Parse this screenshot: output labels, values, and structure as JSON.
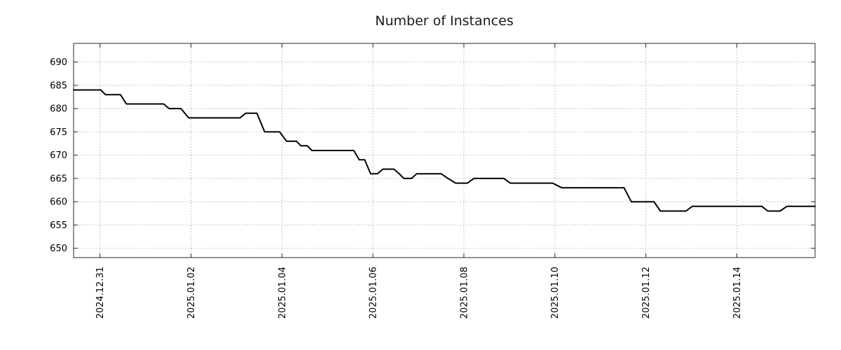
{
  "chart_data": {
    "type": "line",
    "title": "Number of Instances",
    "xlabel": "",
    "ylabel": "",
    "legend": false,
    "grid": true,
    "line_color": "#000000",
    "grid_color": "#999999",
    "axis_color": "#2a2a2a",
    "text_color": "#000000",
    "title_color": "#1a1a1a",
    "line_width": 2,
    "y_ticks": [
      650,
      655,
      660,
      665,
      670,
      675,
      680,
      685,
      690
    ],
    "x_tick_positions": [
      1,
      3,
      5,
      7,
      9,
      11,
      13,
      15
    ],
    "x_tick_labels": [
      "2024.12.31",
      "2025.01.02",
      "2025.01.04",
      "2025.01.06",
      "2025.01.08",
      "2025.01.10",
      "2025.01.12",
      "2025.01.14"
    ],
    "x_domain": [
      0.42,
      16.72
    ],
    "y_domain": [
      648,
      694
    ],
    "points": [
      [
        0.42,
        684
      ],
      [
        1.02,
        684
      ],
      [
        1.12,
        683
      ],
      [
        1.45,
        683
      ],
      [
        1.58,
        681
      ],
      [
        2.4,
        681
      ],
      [
        2.52,
        680
      ],
      [
        2.78,
        680
      ],
      [
        2.95,
        678
      ],
      [
        4.08,
        678
      ],
      [
        4.2,
        679
      ],
      [
        4.45,
        679
      ],
      [
        4.62,
        675
      ],
      [
        4.95,
        675
      ],
      [
        5.1,
        673
      ],
      [
        5.32,
        673
      ],
      [
        5.42,
        672
      ],
      [
        5.56,
        672
      ],
      [
        5.66,
        671
      ],
      [
        6.58,
        671
      ],
      [
        6.7,
        669
      ],
      [
        6.82,
        669
      ],
      [
        6.95,
        666
      ],
      [
        7.1,
        666
      ],
      [
        7.22,
        667
      ],
      [
        7.46,
        667
      ],
      [
        7.58,
        666
      ],
      [
        7.68,
        665
      ],
      [
        7.85,
        665
      ],
      [
        7.96,
        666
      ],
      [
        8.5,
        666
      ],
      [
        8.65,
        665
      ],
      [
        8.82,
        664
      ],
      [
        9.08,
        664
      ],
      [
        9.22,
        665
      ],
      [
        9.88,
        665
      ],
      [
        10.02,
        664
      ],
      [
        10.95,
        664
      ],
      [
        11.15,
        663
      ],
      [
        12.52,
        663
      ],
      [
        12.68,
        660
      ],
      [
        13.18,
        660
      ],
      [
        13.32,
        658
      ],
      [
        13.88,
        658
      ],
      [
        14.02,
        659
      ],
      [
        15.55,
        659
      ],
      [
        15.68,
        658
      ],
      [
        15.95,
        658
      ],
      [
        16.1,
        659
      ],
      [
        16.72,
        659
      ]
    ]
  }
}
